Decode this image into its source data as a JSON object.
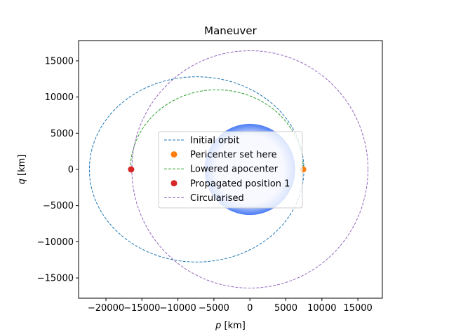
{
  "chart_data": {
    "type": "scatter",
    "title": "Maneuver",
    "xlabel": {
      "var": "p",
      "unit": "[km]"
    },
    "ylabel": {
      "var": "q",
      "unit": "[km]"
    },
    "xlim": [
      -23800,
      18400
    ],
    "ylim": [
      -17800,
      17800
    ],
    "xticks": [
      -20000,
      -15000,
      -10000,
      -5000,
      0,
      5000,
      10000,
      15000
    ],
    "xtick_labels": [
      "−20000",
      "−15000",
      "−10000",
      "−5000",
      "0",
      "5000",
      "10000",
      "15000"
    ],
    "yticks": [
      -15000,
      -10000,
      -5000,
      0,
      5000,
      10000,
      15000
    ],
    "ytick_labels": [
      "−15000",
      "−10000",
      "−5000",
      "0",
      "5000",
      "10000",
      "15000"
    ],
    "grid": false,
    "legend_position": "center",
    "body": {
      "center": [
        0,
        0
      ],
      "radius": 6300,
      "color_edge": "#4a7cf5",
      "color_core": "#dde5ff"
    },
    "series": [
      {
        "name": "Initial orbit",
        "kind": "ellipse",
        "center": [
          -7400,
          0
        ],
        "a": 14900,
        "b": 12800,
        "color": "#1f77b4",
        "linestyle": "dashed",
        "markers": []
      },
      {
        "name": "Pericenter set here",
        "kind": "point",
        "color": "#ff7f0e",
        "markers": [
          {
            "x": 7400,
            "y": 0
          }
        ]
      },
      {
        "name": "Lowered apocenter",
        "kind": "ellipse",
        "center": [
          -4600,
          0
        ],
        "a": 12000,
        "b": 11000,
        "color": "#2ca02c",
        "linestyle": "dashed",
        "markers": [],
        "upper_half_only": true
      },
      {
        "name": "Propagated position 1",
        "kind": "point",
        "color": "#d62728",
        "markers": [
          {
            "x": -16500,
            "y": 0
          }
        ]
      },
      {
        "name": "Circularised",
        "kind": "ellipse",
        "center": [
          0,
          0
        ],
        "a": 16400,
        "b": 16400,
        "color": "#9467bd",
        "linestyle": "dashed",
        "markers": []
      }
    ]
  }
}
